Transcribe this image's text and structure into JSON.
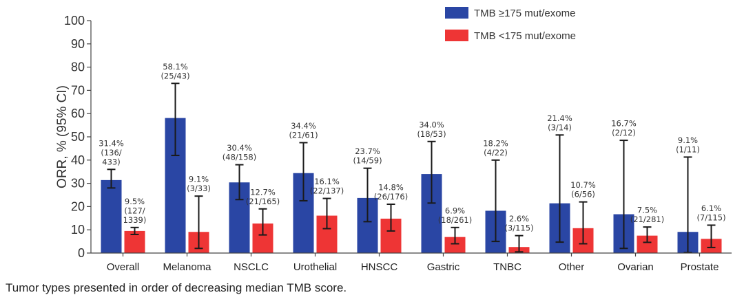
{
  "chart_data": {
    "type": "bar",
    "ylabel": "ORR, % (95% CI)",
    "ylim": [
      0,
      100
    ],
    "yticks": [
      0,
      10,
      20,
      30,
      40,
      50,
      60,
      70,
      80,
      90,
      100
    ],
    "categories": [
      "Overall",
      "Melanoma",
      "NSCLC",
      "Urothelial",
      "HNSCC",
      "Gastric",
      "TNBC",
      "Other",
      "Ovarian",
      "Prostate"
    ],
    "legend_position": "top-right",
    "grid": false,
    "series": [
      {
        "name": "TMB ≥175 mut/exome",
        "color": "#2a46a4",
        "values": [
          31.4,
          58.1,
          30.4,
          34.4,
          23.7,
          34.0,
          18.2,
          21.4,
          16.7,
          9.1
        ],
        "ci_low": [
          28,
          42,
          23,
          22.5,
          13.5,
          21.5,
          5,
          4.7,
          2,
          0.2
        ],
        "ci_high": [
          36,
          73,
          38,
          47.5,
          36.5,
          48,
          40,
          50.8,
          48.5,
          41.3
        ],
        "labels": [
          [
            "31.4%",
            "(136/",
            "433)"
          ],
          [
            "58.1%",
            "(25/43)"
          ],
          [
            "30.4%",
            "(48/158)"
          ],
          [
            "34.4%",
            "(21/61)"
          ],
          [
            "23.7%",
            "(14/59)"
          ],
          [
            "34.0%",
            "(18/53)"
          ],
          [
            "18.2%",
            "(4/22)"
          ],
          [
            "21.4%",
            "(3/14)"
          ],
          [
            "16.7%",
            "(2/12)"
          ],
          [
            "9.1%",
            "(1/11)"
          ]
        ]
      },
      {
        "name": "TMB <175 mut/exome",
        "color": "#ee3535",
        "values": [
          9.5,
          9.1,
          12.7,
          16.1,
          14.8,
          6.9,
          2.6,
          10.7,
          7.5,
          6.1
        ],
        "ci_low": [
          8,
          2,
          7.8,
          10.5,
          9.5,
          4,
          0.5,
          4,
          4.6,
          2.4
        ],
        "ci_high": [
          11,
          24.5,
          19,
          23.5,
          21,
          11,
          7.5,
          22,
          11.2,
          12
        ],
        "labels": [
          [
            "9.5%",
            "(127/",
            "1339)"
          ],
          [
            "9.1%",
            "(3/33)"
          ],
          [
            "12.7%",
            "(21/165)"
          ],
          [
            "16.1%",
            "(22/137)"
          ],
          [
            "14.8%",
            "(26/176)"
          ],
          [
            "6.9%",
            "(18/261)"
          ],
          [
            "2.6%",
            "(3/115)"
          ],
          [
            "10.7%",
            "(6/56)"
          ],
          [
            "7.5%",
            "(21/281)"
          ],
          [
            "6.1%",
            "(7/115)"
          ]
        ]
      }
    ]
  },
  "footnote": "Tumor types presented in order of decreasing median TMB score."
}
